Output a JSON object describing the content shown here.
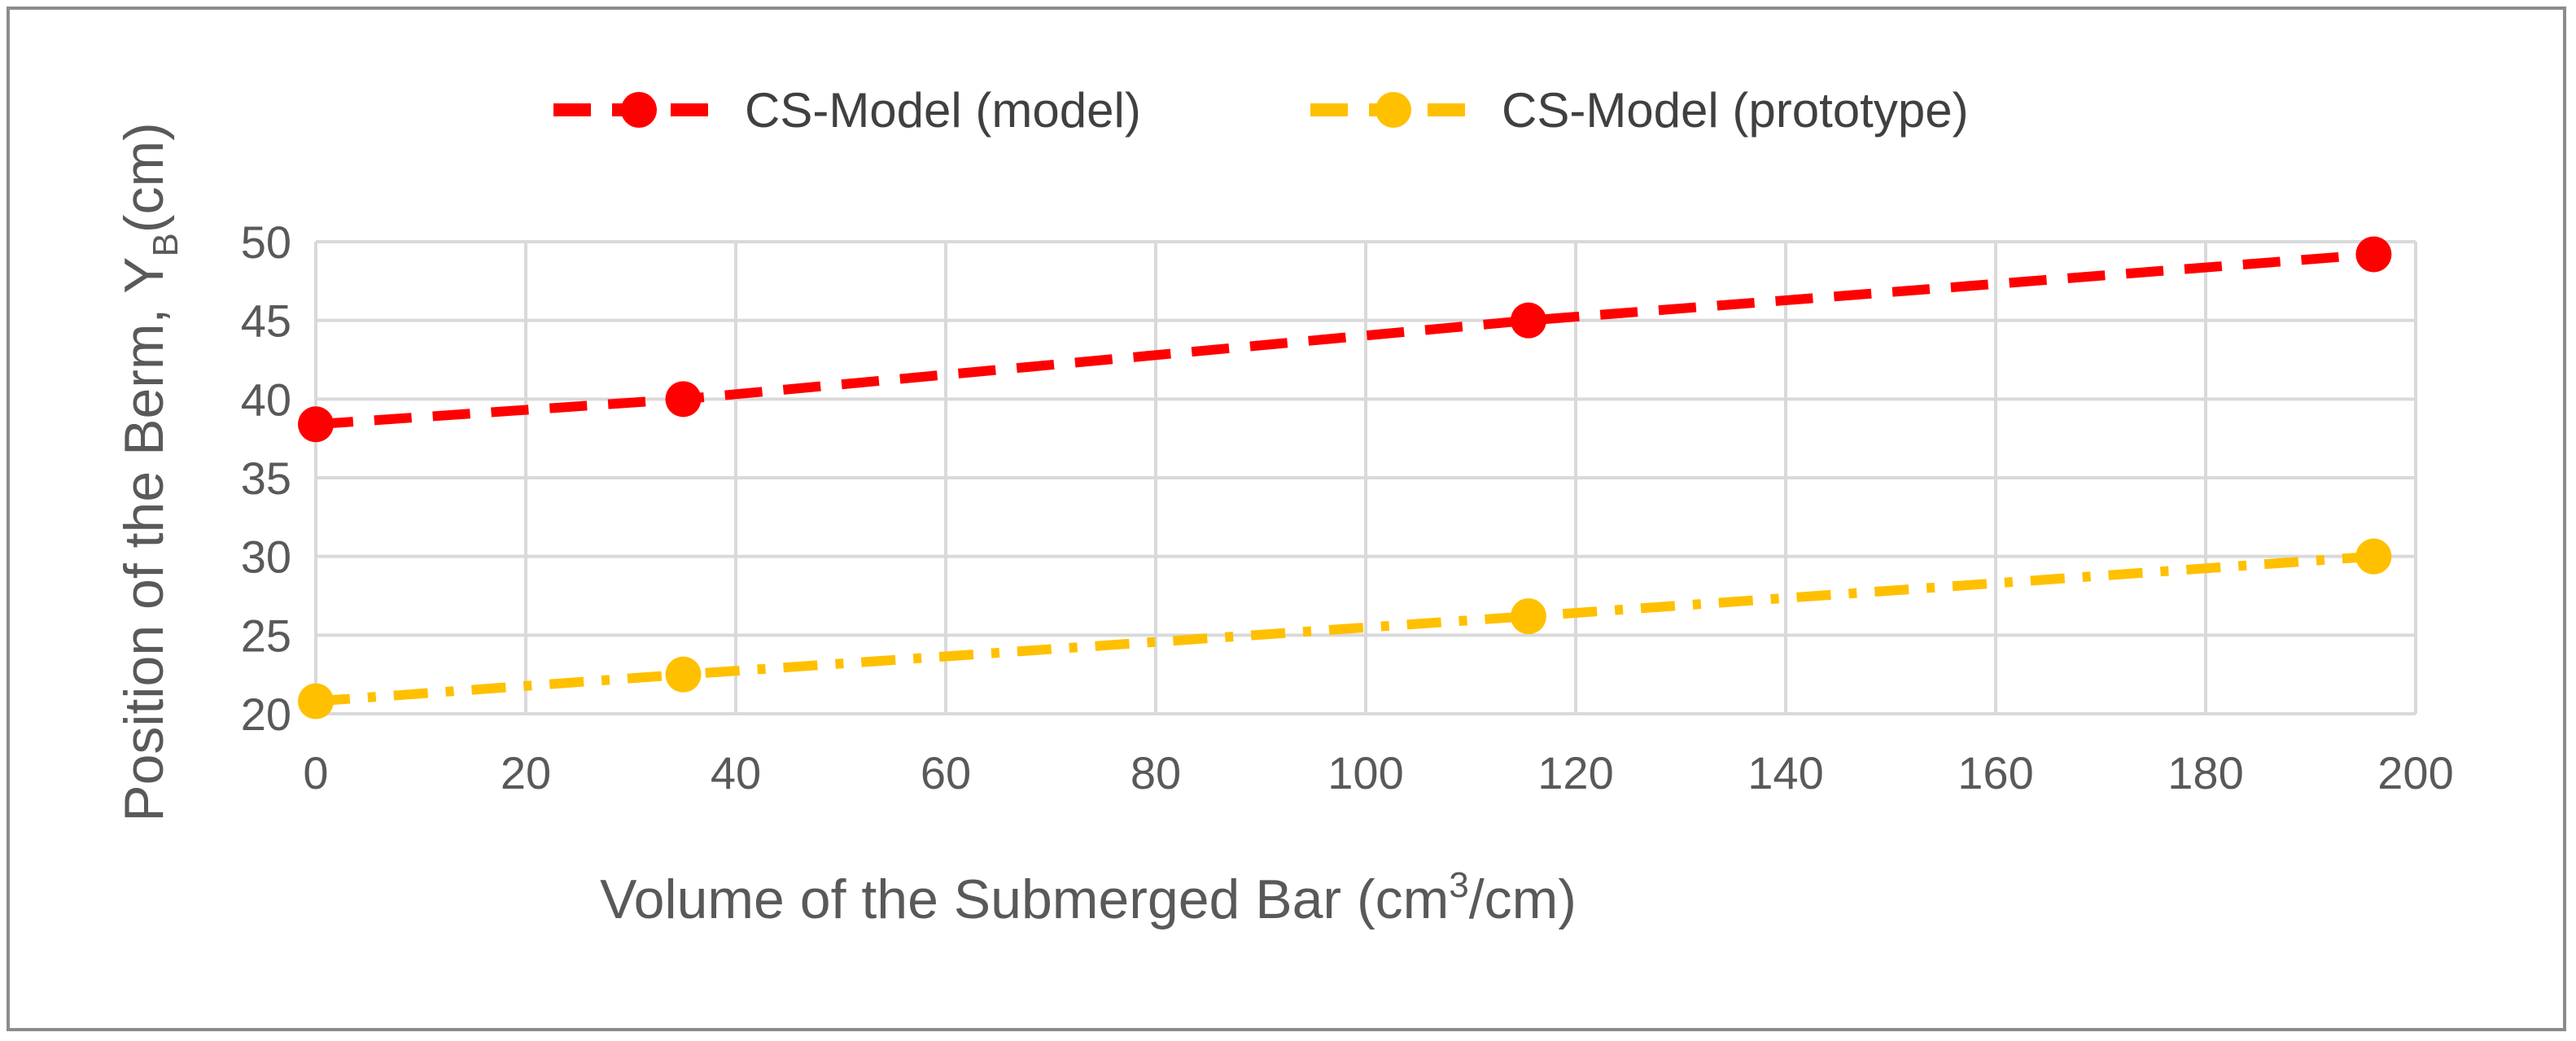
{
  "chart_data": {
    "type": "line",
    "title": "",
    "xlabel": "Volume of the Submerged Bar (cm³/cm)",
    "ylabel": "Position of the Berm, Y_B(cm)",
    "ylabel_main": "Position of the Berm, Y",
    "ylabel_sub": "B",
    "ylabel_tail": "(cm)",
    "xlabel_main": "Volume of the Submerged Bar (cm",
    "xlabel_sup": "3",
    "xlabel_tail": "/cm)",
    "xlim": [
      0,
      200
    ],
    "ylim": [
      20,
      50
    ],
    "xticks": [
      0,
      20,
      40,
      60,
      80,
      100,
      120,
      140,
      160,
      180,
      200
    ],
    "yticks": [
      20,
      25,
      30,
      35,
      40,
      45,
      50
    ],
    "grid": true,
    "legend_position": "top-center",
    "series": [
      {
        "name": "CS-Model (model)",
        "color": "#ff0000",
        "line_style": "dashed",
        "x": [
          0,
          35,
          115.5,
          196
        ],
        "y": [
          38.4,
          40.0,
          45.0,
          49.2
        ]
      },
      {
        "name": "CS-Model (prototype)",
        "color": "#ffc000",
        "line_style": "dash-dot",
        "x": [
          0,
          35,
          115.5,
          196
        ],
        "y": [
          20.8,
          22.5,
          26.2,
          30.0
        ]
      }
    ]
  }
}
